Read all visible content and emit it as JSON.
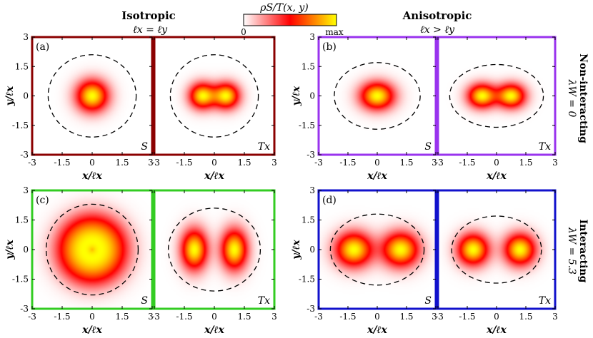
{
  "column_headers": [
    {
      "title": "Isotropic",
      "condition": "ℓx = ℓy"
    },
    {
      "title": "Anisotropic",
      "condition": "ℓx > ℓy"
    }
  ],
  "row_labels": [
    {
      "title": "Non-interacting",
      "value": "λW = 0"
    },
    {
      "title": "Interacting",
      "value": "λW = 5.3"
    }
  ],
  "colorbar": {
    "label": "ρS/T(x, y)",
    "min_label": "0",
    "max_label": "max",
    "colors": [
      "#ffffff",
      "#ff0000",
      "#ffff00"
    ]
  },
  "axes": {
    "xlabel": "x/ℓx",
    "ylabel": "y/ℓx",
    "ticks": [
      "-3",
      "-1.5",
      "0",
      "1.5",
      "3"
    ],
    "range": [
      -3,
      3
    ]
  },
  "panels": [
    {
      "id": "a",
      "label": "(a)",
      "frame_color": "#8b0000",
      "subpanels": [
        {
          "tag": "S",
          "density": {
            "type": "single",
            "sx": 0.55,
            "sy": 0.55
          },
          "dashed_ellipse": {
            "rx": 2.2,
            "ry": 2.1
          }
        },
        {
          "tag": "Tx",
          "density": {
            "type": "double",
            "sep": 0.6,
            "sx": 0.45,
            "sy": 0.45
          },
          "dashed_ellipse": {
            "rx": 2.2,
            "ry": 2.1
          }
        }
      ]
    },
    {
      "id": "b",
      "label": "(b)",
      "frame_color": "#9933ee",
      "subpanels": [
        {
          "tag": "S",
          "density": {
            "type": "single",
            "sx": 0.6,
            "sy": 0.48
          },
          "dashed_ellipse": {
            "rx": 2.2,
            "ry": 1.7
          }
        },
        {
          "tag": "Tx",
          "density": {
            "type": "double",
            "sep": 0.75,
            "sx": 0.5,
            "sy": 0.42
          },
          "dashed_ellipse": {
            "rx": 2.4,
            "ry": 1.6
          }
        }
      ]
    },
    {
      "id": "c",
      "label": "(c)",
      "frame_color": "#33cc22",
      "subpanels": [
        {
          "tag": "S",
          "density": {
            "type": "ring",
            "r": 0.8,
            "w": 0.75
          },
          "dashed_ellipse": {
            "rx": 2.3,
            "ry": 2.3
          }
        },
        {
          "tag": "Tx",
          "density": {
            "type": "double",
            "sep": 1.0,
            "sx": 0.45,
            "sy": 0.7
          },
          "dashed_ellipse": {
            "rx": 2.3,
            "ry": 2.1
          }
        }
      ]
    },
    {
      "id": "d",
      "label": "(d)",
      "frame_color": "#1111cc",
      "subpanels": [
        {
          "tag": "S",
          "density": {
            "type": "double",
            "sep": 1.2,
            "sx": 0.65,
            "sy": 0.6
          },
          "dashed_ellipse": {
            "rx": 2.4,
            "ry": 1.8
          }
        },
        {
          "tag": "Tx",
          "density": {
            "type": "double",
            "sep": 1.2,
            "sx": 0.55,
            "sy": 0.55
          },
          "dashed_ellipse": {
            "rx": 2.3,
            "ry": 1.7
          }
        }
      ]
    }
  ]
}
